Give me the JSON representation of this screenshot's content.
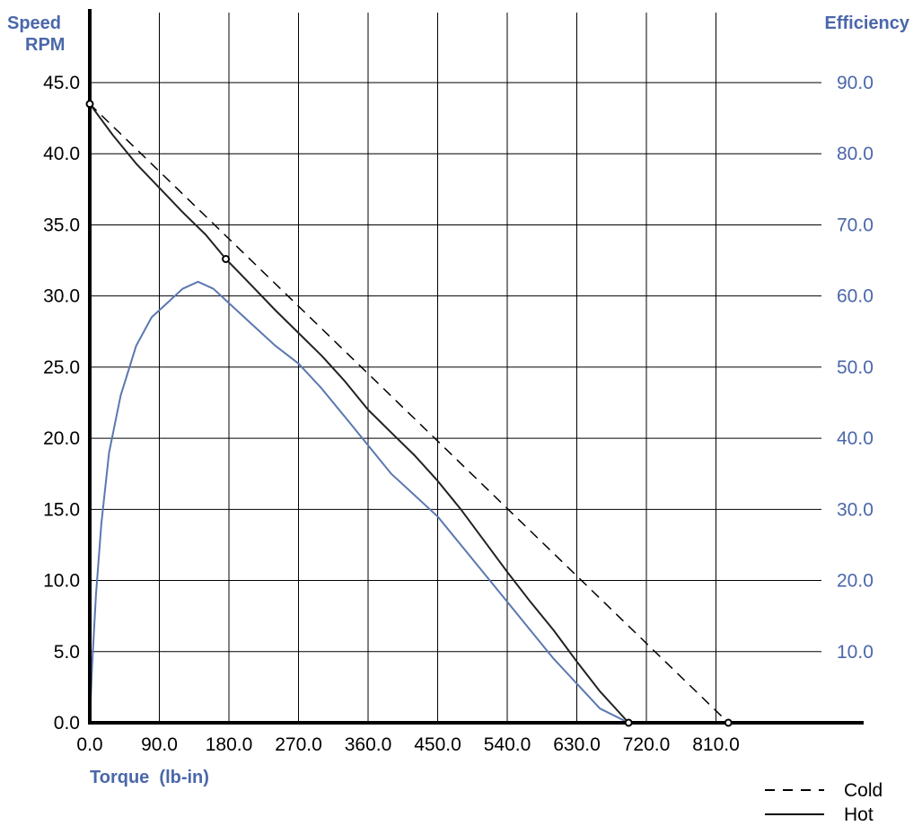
{
  "chart_data": {
    "type": "line",
    "title": "",
    "xlabel": "Torque  (lb-in)",
    "ylabel_left": [
      "Speed",
      "RPM"
    ],
    "ylabel_right": "Efficiency",
    "xlim": [
      0,
      900
    ],
    "ylim_left": [
      0,
      45
    ],
    "ylim_right": [
      0,
      90
    ],
    "x_ticks": [
      "0.0",
      "90.0",
      "180.0",
      "270.0",
      "360.0",
      "450.0",
      "540.0",
      "630.0",
      "720.0",
      "810.0"
    ],
    "y_left_ticks": [
      "0.0",
      "5.0",
      "10.0",
      "15.0",
      "20.0",
      "25.0",
      "30.0",
      "35.0",
      "40.0",
      "45.0"
    ],
    "y_right_ticks": [
      "10.0",
      "20.0",
      "30.0",
      "40.0",
      "50.0",
      "60.0",
      "70.0",
      "80.0",
      "90.0"
    ],
    "grid": true,
    "legend_position": "bottom-right",
    "colors": {
      "speed": "#222222",
      "efficiency": "#5b78b0",
      "axis": "#000000",
      "grid": "#000000",
      "right_axis_text": "#4a67aa",
      "title_text": "#4a67aa"
    },
    "series": [
      {
        "name": "Cold",
        "axis": "left",
        "style": "dashed",
        "x": [
          0,
          826
        ],
        "y": [
          43.5,
          0
        ]
      },
      {
        "name": "Hot",
        "axis": "left",
        "style": "solid",
        "x": [
          0,
          30,
          60,
          90,
          120,
          150,
          176,
          210,
          240,
          270,
          300,
          330,
          360,
          390,
          420,
          450,
          480,
          510,
          540,
          570,
          600,
          630,
          660,
          697
        ],
        "y": [
          43.5,
          41.3,
          39.3,
          37.6,
          35.9,
          34.3,
          32.6,
          30.7,
          29.0,
          27.4,
          25.8,
          24.0,
          22.0,
          20.4,
          18.8,
          17.0,
          15.0,
          12.8,
          10.6,
          8.5,
          6.5,
          4.3,
          2.2,
          0
        ]
      },
      {
        "name": "Efficiency",
        "axis": "right",
        "style": "solid",
        "x": [
          0,
          3,
          8,
          15,
          25,
          40,
          60,
          80,
          100,
          120,
          140,
          160,
          180,
          210,
          240,
          270,
          300,
          330,
          360,
          390,
          420,
          450,
          480,
          510,
          540,
          570,
          600,
          630,
          660,
          697
        ],
        "y": [
          0,
          8,
          18,
          28,
          38,
          46,
          53,
          57,
          59,
          61,
          62,
          61,
          59,
          56,
          53,
          50.5,
          47,
          43,
          39,
          35,
          32,
          29,
          25,
          21,
          17,
          13,
          9,
          5.5,
          2,
          0
        ]
      }
    ],
    "markers": [
      {
        "x": 0,
        "y": 43.5
      },
      {
        "x": 176,
        "y": 32.6
      },
      {
        "x": 697,
        "y": 0
      },
      {
        "x": 826,
        "y": 0
      }
    ]
  }
}
